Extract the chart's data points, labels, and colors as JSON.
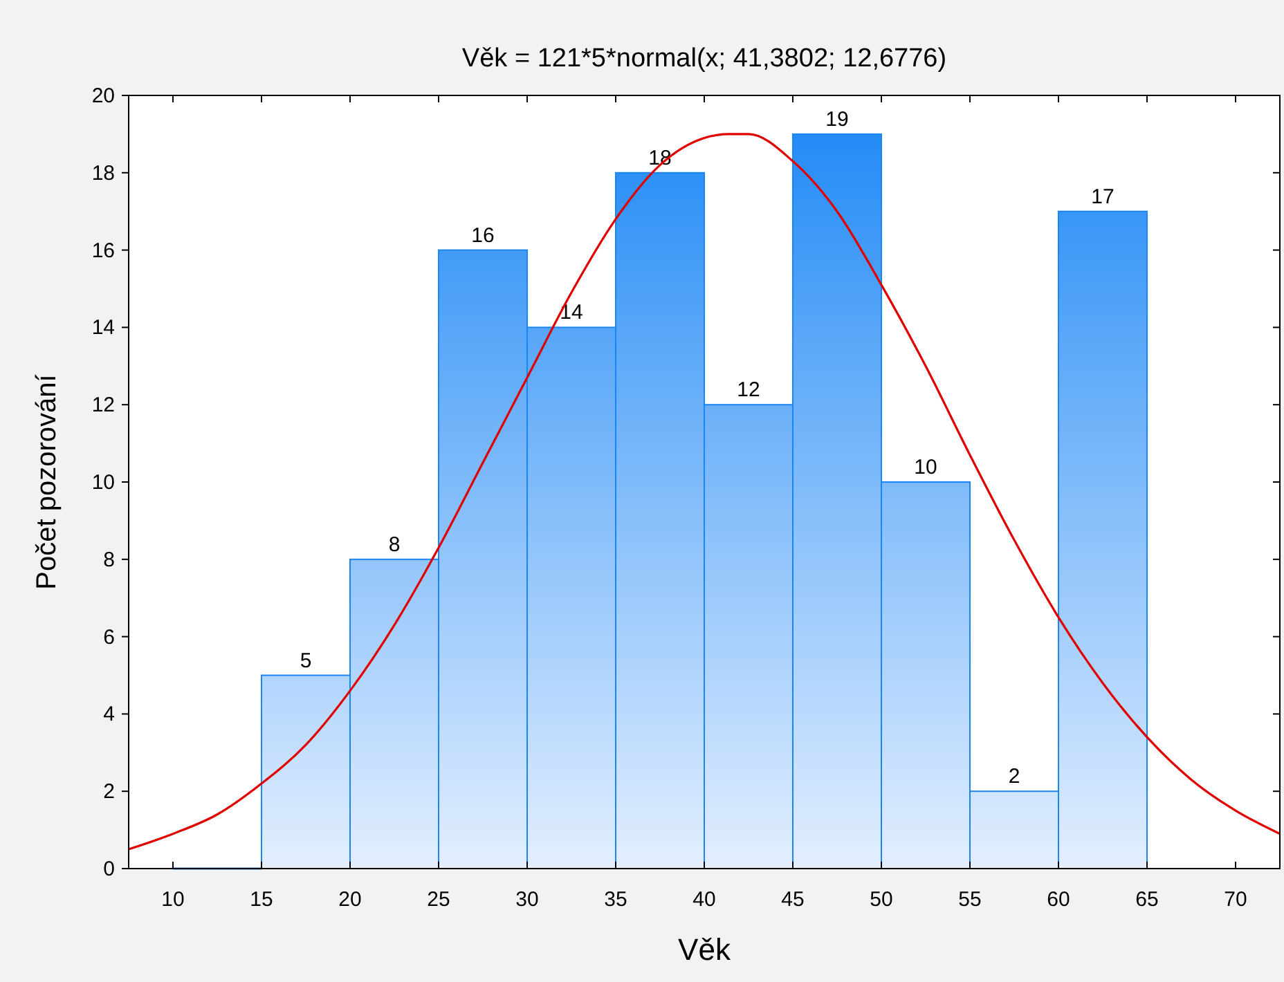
{
  "chart_data": {
    "type": "histogram",
    "title": "Věk = 121*5*normal(x; 41,3802; 12,6776)",
    "xlabel": "Věk",
    "ylabel": "Počet pozorování",
    "bins": [
      10,
      15,
      20,
      25,
      30,
      35,
      40,
      45,
      50,
      55,
      60,
      65
    ],
    "values": [
      0,
      5,
      8,
      16,
      14,
      18,
      12,
      19,
      10,
      2,
      17
    ],
    "value_labels": [
      null,
      "5",
      "8",
      "16",
      "14",
      "18",
      "12",
      "19",
      "10",
      "2",
      "17"
    ],
    "color": "#1a86f5",
    "series": [
      {
        "type": "line",
        "color": "#e00000",
        "x": [
          7.5,
          10,
          12.5,
          15,
          17.5,
          20,
          22.5,
          25,
          27.5,
          30,
          32.5,
          35,
          37.5,
          40,
          41.4,
          42.5,
          45,
          47.5,
          50,
          52.5,
          55,
          57.5,
          60,
          62.5,
          65,
          67.5,
          70,
          72.5
        ],
        "values": [
          0.5,
          0.9,
          1.4,
          2.2,
          3.2,
          4.6,
          6.3,
          8.3,
          10.5,
          12.7,
          14.9,
          16.8,
          18.2,
          18.9,
          19.0,
          19.0,
          18.3,
          17.0,
          15.1,
          13.0,
          10.7,
          8.5,
          6.5,
          4.8,
          3.4,
          2.3,
          1.5,
          0.9
        ]
      }
    ],
    "xlim": [
      7.5,
      72.5
    ],
    "xticks": [
      10,
      15,
      20,
      25,
      30,
      35,
      40,
      45,
      50,
      55,
      60,
      65,
      70
    ],
    "ylim": [
      0,
      20
    ],
    "yticks": [
      0,
      2,
      4,
      6,
      8,
      10,
      12,
      14,
      16,
      18,
      20
    ],
    "grid": false,
    "line_style": "solid"
  }
}
